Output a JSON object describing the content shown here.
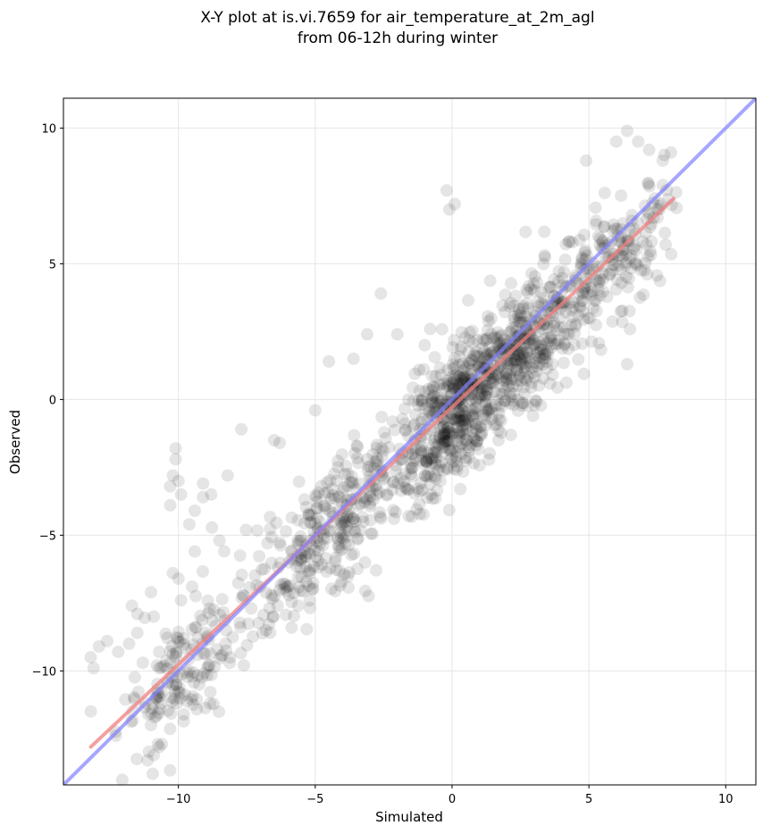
{
  "chart_data": {
    "type": "scatter",
    "title": "X-Y plot at is.vi.7659 for air_temperature_at_2m_agl",
    "subtitle": "from 06-12h during winter",
    "xlabel": "Simulated",
    "ylabel": "Observed",
    "xlim": [
      -14.2,
      11.1
    ],
    "ylim": [
      -14.2,
      11.1
    ],
    "xticks": [
      -10,
      -5,
      0,
      5,
      10
    ],
    "yticks": [
      -10,
      -5,
      0,
      5,
      10
    ],
    "xtick_labels": [
      "−10",
      "−5",
      "0",
      "5",
      "10"
    ],
    "ytick_labels": [
      "−10",
      "−5",
      "0",
      "5",
      "10"
    ],
    "grid": true,
    "point_color": "#000000",
    "point_opacity": 0.1,
    "regression_line": {
      "color": "#f08080",
      "x": [
        -13.2,
        8.1
      ],
      "y": [
        -12.8,
        7.4
      ]
    },
    "identity_line": {
      "color": "#8080ff",
      "x": [
        -14.2,
        11.1
      ],
      "y": [
        -14.2,
        11.1
      ]
    },
    "points_generator": {
      "count": 1500,
      "seed": 7659,
      "approximate": true
    },
    "points": [
      [
        -13.2,
        -9.5
      ],
      [
        -13.1,
        -9.9
      ],
      [
        -12.9,
        -9.1
      ],
      [
        -12.6,
        -8.9
      ],
      [
        -12.2,
        -9.3
      ],
      [
        -11.8,
        -9.0
      ],
      [
        -11.5,
        -8.6
      ],
      [
        -11.5,
        -7.9
      ],
      [
        -11.7,
        -7.6
      ],
      [
        -11.3,
        -9.7
      ],
      [
        -11.0,
        -7.1
      ],
      [
        -10.9,
        -8.0
      ],
      [
        -10.7,
        -9.3
      ],
      [
        -10.7,
        -9.9
      ],
      [
        -10.2,
        -6.4
      ],
      [
        -10.0,
        -6.6
      ],
      [
        -10.1,
        -1.8
      ],
      [
        -10.1,
        -2.2
      ],
      [
        -10.2,
        -2.8
      ],
      [
        -10.3,
        -3.2
      ],
      [
        -9.9,
        -3.5
      ],
      [
        -10.0,
        -3.0
      ],
      [
        -10.3,
        -3.9
      ],
      [
        -9.6,
        -4.6
      ],
      [
        -9.4,
        -4.1
      ],
      [
        -9.1,
        -3.6
      ],
      [
        -9.1,
        -3.1
      ],
      [
        -8.8,
        -3.5
      ],
      [
        -8.5,
        -5.2
      ],
      [
        -8.2,
        -2.8
      ],
      [
        -11.0,
        -12.0
      ],
      [
        -10.7,
        -12.8
      ],
      [
        -10.6,
        -12.7
      ],
      [
        -10.9,
        -13.1
      ],
      [
        -11.1,
        -11.6
      ],
      [
        -9.8,
        -11.6
      ],
      [
        -10.8,
        -11.0
      ],
      [
        -9.9,
        -7.4
      ],
      [
        -9.5,
        -6.9
      ],
      [
        -9.4,
        -5.6
      ],
      [
        6.4,
        9.9
      ],
      [
        6.0,
        9.5
      ],
      [
        6.8,
        9.5
      ],
      [
        7.2,
        9.2
      ],
      [
        7.7,
        8.8
      ],
      [
        8.0,
        9.1
      ],
      [
        4.9,
        8.8
      ],
      [
        -0.2,
        7.7
      ],
      [
        -0.1,
        7.0
      ],
      [
        0.1,
        7.2
      ],
      [
        -3.1,
        2.4
      ],
      [
        -2.6,
        3.9
      ],
      [
        6.4,
        1.3
      ],
      [
        7.1,
        5.7
      ],
      [
        6.7,
        6.1
      ],
      [
        6.5,
        5.2
      ],
      [
        5.3,
        4.9
      ],
      [
        7.7,
        7.9
      ],
      [
        -7.7,
        -1.1
      ],
      [
        -6.5,
        -1.5
      ],
      [
        -6.3,
        -1.6
      ],
      [
        -5.0,
        -0.4
      ],
      [
        -4.5,
        1.4
      ],
      [
        -3.6,
        1.5
      ],
      [
        -2.0,
        2.4
      ],
      [
        -1.0,
        2.0
      ],
      [
        -0.8,
        2.6
      ],
      [
        0.3,
        -3.3
      ]
    ]
  }
}
